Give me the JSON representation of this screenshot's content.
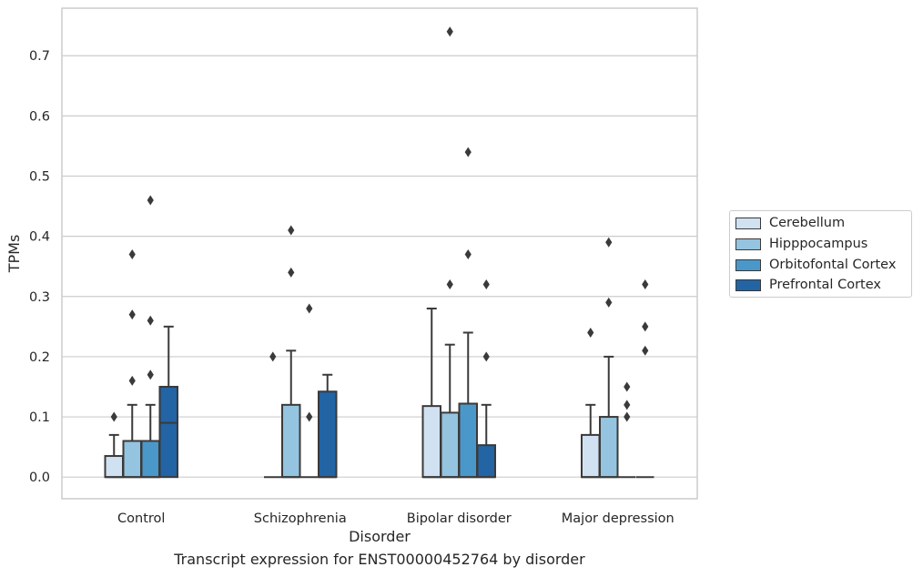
{
  "chart_data": {
    "type": "box",
    "title": "",
    "caption": "Transcript expression for ENST00000452764 by disorder",
    "xlabel": "Disorder",
    "ylabel": "TPMs",
    "ylim": [
      -0.036,
      0.779
    ],
    "yticks": [
      "0.0",
      "0.1",
      "0.2",
      "0.3",
      "0.4",
      "0.5",
      "0.6",
      "0.7"
    ],
    "grid": "horizontal",
    "legend_position": "right",
    "categories": [
      "Control",
      "Schizophrenia",
      "Bipolar disorder",
      "Major depression"
    ],
    "series": [
      {
        "name": "Cerebellum",
        "color": "#d0e1f2",
        "boxes": [
          {
            "q1": 0.0,
            "median": 0.0,
            "q3": 0.035,
            "whisker_low": 0.0,
            "whisker_high": 0.07,
            "outliers": [
              0.1
            ]
          },
          {
            "q1": 0.0,
            "median": 0.0,
            "q3": 0.0,
            "whisker_low": 0.0,
            "whisker_high": 0.0,
            "outliers": [
              0.2
            ]
          },
          {
            "q1": 0.0,
            "median": 0.0,
            "q3": 0.118,
            "whisker_low": 0.0,
            "whisker_high": 0.28,
            "outliers": []
          },
          {
            "q1": 0.0,
            "median": 0.0,
            "q3": 0.07,
            "whisker_low": 0.0,
            "whisker_high": 0.12,
            "outliers": [
              0.24
            ]
          }
        ]
      },
      {
        "name": "Hipppocampus",
        "color": "#94c4df",
        "boxes": [
          {
            "q1": 0.0,
            "median": 0.0,
            "q3": 0.06,
            "whisker_low": 0.0,
            "whisker_high": 0.12,
            "outliers": [
              0.16,
              0.27,
              0.37
            ]
          },
          {
            "q1": 0.0,
            "median": 0.0,
            "q3": 0.12,
            "whisker_low": 0.0,
            "whisker_high": 0.21,
            "outliers": [
              0.34,
              0.41
            ]
          },
          {
            "q1": 0.0,
            "median": 0.0,
            "q3": 0.107,
            "whisker_low": 0.0,
            "whisker_high": 0.22,
            "outliers": [
              0.32,
              0.74
            ]
          },
          {
            "q1": 0.0,
            "median": 0.0,
            "q3": 0.1,
            "whisker_low": 0.0,
            "whisker_high": 0.2,
            "outliers": [
              0.29,
              0.39
            ]
          }
        ]
      },
      {
        "name": "Orbitofontal Cortex",
        "color": "#4a98c9",
        "boxes": [
          {
            "q1": 0.0,
            "median": 0.0,
            "q3": 0.06,
            "whisker_low": 0.0,
            "whisker_high": 0.12,
            "outliers": [
              0.17,
              0.26,
              0.46
            ]
          },
          {
            "q1": 0.0,
            "median": 0.0,
            "q3": 0.0,
            "whisker_low": 0.0,
            "whisker_high": 0.0,
            "outliers": [
              0.1,
              0.28
            ]
          },
          {
            "q1": 0.0,
            "median": 0.0,
            "q3": 0.122,
            "whisker_low": 0.0,
            "whisker_high": 0.24,
            "outliers": [
              0.37,
              0.54
            ]
          },
          {
            "q1": 0.0,
            "median": 0.0,
            "q3": 0.0,
            "whisker_low": 0.0,
            "whisker_high": 0.0,
            "outliers": [
              0.1,
              0.12,
              0.15
            ]
          }
        ]
      },
      {
        "name": "Prefrontal Cortex",
        "color": "#2264a4",
        "boxes": [
          {
            "q1": 0.0,
            "median": 0.09,
            "q3": 0.15,
            "whisker_low": 0.0,
            "whisker_high": 0.25,
            "outliers": []
          },
          {
            "q1": 0.0,
            "median": 0.0,
            "q3": 0.142,
            "whisker_low": 0.0,
            "whisker_high": 0.17,
            "outliers": []
          },
          {
            "q1": 0.0,
            "median": 0.0,
            "q3": 0.053,
            "whisker_low": 0.0,
            "whisker_high": 0.12,
            "outliers": [
              0.2,
              0.32
            ]
          },
          {
            "q1": 0.0,
            "median": 0.0,
            "q3": 0.0,
            "whisker_low": 0.0,
            "whisker_high": 0.0,
            "outliers": [
              0.21,
              0.25,
              0.32
            ]
          }
        ]
      }
    ]
  }
}
